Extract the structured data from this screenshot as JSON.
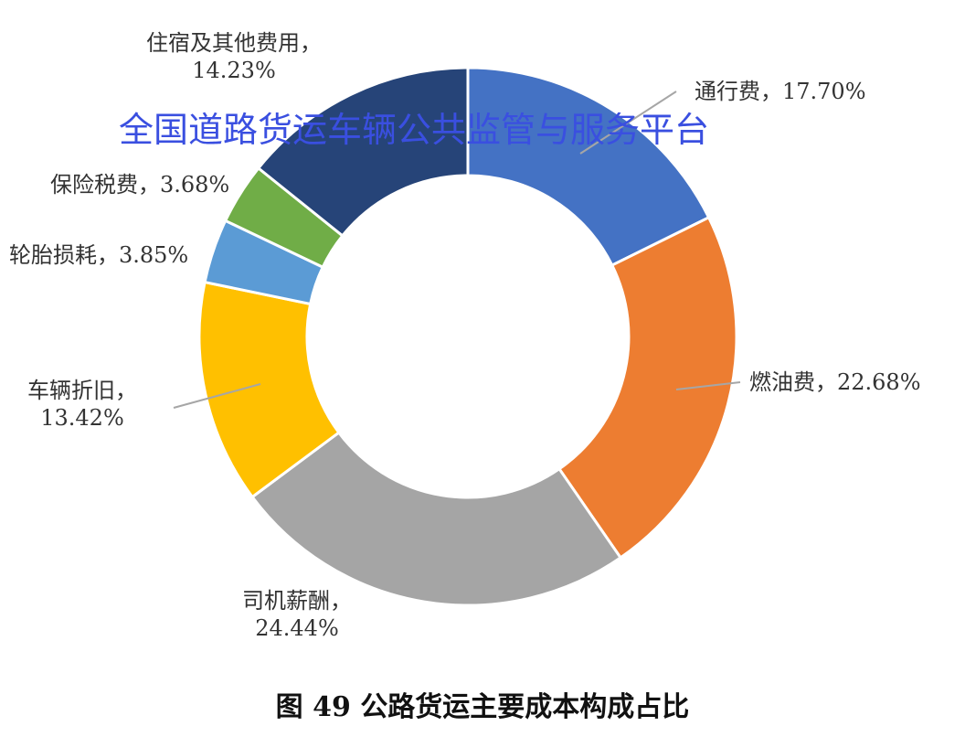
{
  "chart_data": {
    "type": "pie",
    "donut": true,
    "start": "top, clockwise",
    "slices": [
      {
        "label": "通行费",
        "value": 17.7,
        "text": "通行费，17.70%",
        "color": "#4472c4"
      },
      {
        "label": "燃油费",
        "value": 22.68,
        "text": "燃油费，22.68%",
        "color": "#ed7d31"
      },
      {
        "label": "司机薪酬",
        "value": 24.44,
        "text": "司机薪酬，\n24.44%",
        "color": "#a5a5a5"
      },
      {
        "label": "车辆折旧",
        "value": 13.42,
        "text": "车辆折旧，\n13.42%",
        "color": "#ffc000"
      },
      {
        "label": "轮胎损耗",
        "value": 3.85,
        "text": "轮胎损耗，3.85%",
        "color": "#5b9bd5"
      },
      {
        "label": "保险税费",
        "value": 3.68,
        "text": "保险税费，3.68%",
        "color": "#70ad47"
      },
      {
        "label": "住宿及其他费用",
        "value": 14.23,
        "text": "住宿及其他费用，\n14.23%",
        "color": "#264478"
      }
    ],
    "title": "图 49  公路货运主要成本构成占比"
  },
  "watermark": "全国道路货运车辆公共监管与服务平台"
}
